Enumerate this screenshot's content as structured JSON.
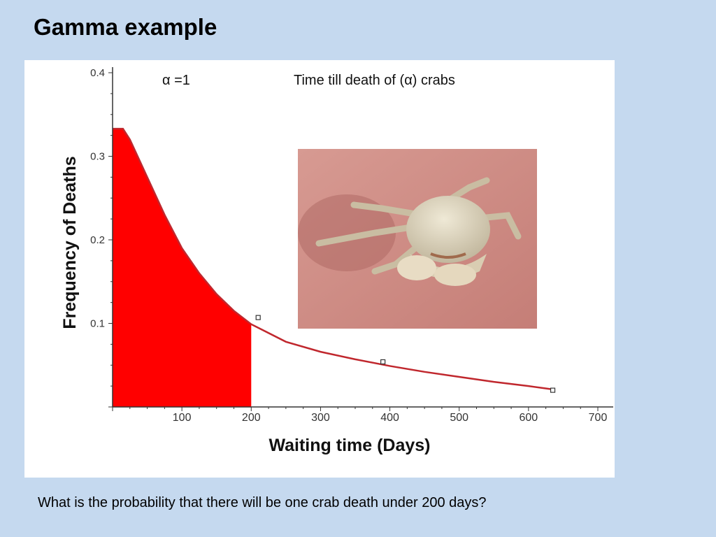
{
  "slide": {
    "title": "Gamma example",
    "question": "What is the probability that there will be one crab death under 200 days?",
    "alpha_label": "α =1",
    "caption": "Time till death of (α) crabs",
    "photo_icon": "crab-photo"
  },
  "colors": {
    "background": "#c5d9ef",
    "fill": "#ff0000",
    "curve": "#c0272d"
  },
  "chart_data": {
    "type": "line",
    "title": "",
    "xlabel": "Waiting time (Days)",
    "ylabel": "Frequency of Deaths",
    "xlim": [
      0,
      700
    ],
    "ylim": [
      0,
      0.4
    ],
    "x_ticks": [
      "100",
      "200",
      "300",
      "400",
      "500",
      "600",
      "700"
    ],
    "x_tick_values": [
      100,
      200,
      300,
      400,
      500,
      600,
      700
    ],
    "y_ticks": [
      "0.1",
      "0.2",
      "0.3",
      "0.4"
    ],
    "y_tick_values": [
      0.1,
      0.2,
      0.3,
      0.4
    ],
    "curve": {
      "x": [
        0,
        15,
        25,
        50,
        75,
        100,
        125,
        150,
        175,
        200,
        250,
        300,
        350,
        400,
        450,
        500,
        550,
        600,
        635
      ],
      "y": [
        0.333,
        0.333,
        0.32,
        0.275,
        0.23,
        0.19,
        0.16,
        0.135,
        0.115,
        0.099,
        0.078,
        0.066,
        0.057,
        0.049,
        0.042,
        0.036,
        0.03,
        0.025,
        0.021
      ]
    },
    "shaded_region": {
      "from": 0,
      "to": 200
    },
    "markers": {
      "x": [
        210,
        390,
        635
      ],
      "y": [
        0.107,
        0.054,
        0.02
      ]
    }
  }
}
